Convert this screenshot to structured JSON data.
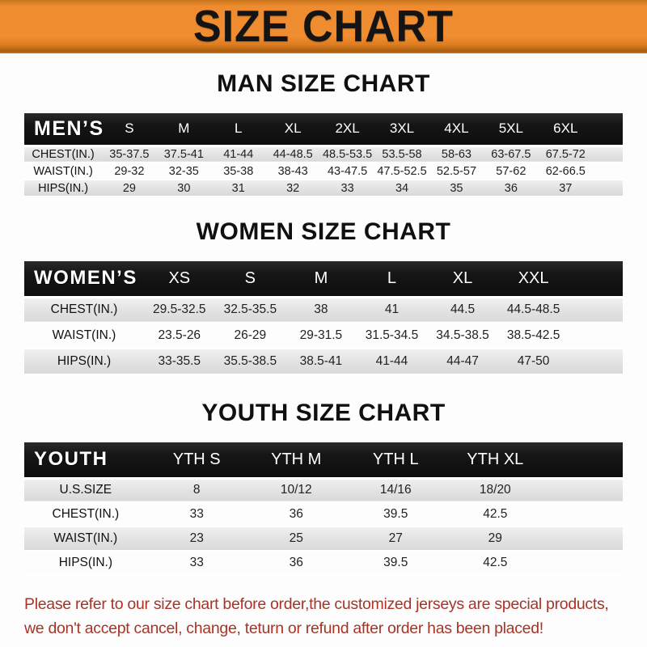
{
  "banner": {
    "title": "SIZE CHART"
  },
  "sections": [
    {
      "heading": "MAN SIZE CHART",
      "table": {
        "header": [
          "MEN’S",
          "S",
          "M",
          "L",
          "XL",
          "2XL",
          "3XL",
          "4XL",
          "5XL",
          "6XL"
        ],
        "rows": [
          [
            "CHEST(IN.)",
            "35-37.5",
            "37.5-41",
            "41-44",
            "44-48.5",
            "48.5-53.5",
            "53.5-58",
            "58-63",
            "63-67.5",
            "67.5-72"
          ],
          [
            "WAIST(IN.)",
            "29-32",
            "32-35",
            "35-38",
            "38-43",
            "43-47.5",
            "47.5-52.5",
            "52.5-57",
            "57-62",
            "62-66.5"
          ],
          [
            "HIPS(IN.)",
            "29",
            "30",
            "31",
            "32",
            "33",
            "34",
            "35",
            "36",
            "37"
          ]
        ]
      }
    },
    {
      "heading": "WOMEN SIZE CHART",
      "table": {
        "header": [
          "WOMEN’S",
          "XS",
          "S",
          "M",
          "L",
          "XL",
          "XXL"
        ],
        "rows": [
          [
            "CHEST(IN.)",
            "29.5-32.5",
            "32.5-35.5",
            "38",
            "41",
            "44.5",
            "44.5-48.5"
          ],
          [
            "WAIST(IN.)",
            "23.5-26",
            "26-29",
            "29-31.5",
            "31.5-34.5",
            "34.5-38.5",
            "38.5-42.5"
          ],
          [
            "HIPS(IN.)",
            "33-35.5",
            "35.5-38.5",
            "38.5-41",
            "41-44",
            "44-47",
            "47-50"
          ]
        ]
      }
    },
    {
      "heading": "YOUTH SIZE CHART",
      "table": {
        "header": [
          "YOUTH",
          "YTH S",
          "YTH M",
          "YTH L",
          "YTH XL"
        ],
        "rows": [
          [
            "U.S.SIZE",
            "8",
            "10/12",
            "14/16",
            "18/20"
          ],
          [
            "CHEST(IN.)",
            "33",
            "36",
            "39.5",
            "42.5"
          ],
          [
            "WAIST(IN.)",
            "23",
            "25",
            "27",
            "29"
          ],
          [
            "HIPS(IN.)",
            "33",
            "36",
            "39.5",
            "42.5"
          ]
        ]
      }
    }
  ],
  "footer": {
    "line1": "Please refer to our size chart before order,the customized jerseys are special products,",
    "line2": "we don't accept cancel, change, teturn or refund after order has been placed!"
  },
  "colors": {
    "banner-orange": "#EE8B2E",
    "bar-black": "#161616",
    "row-gray": "#E2E2E2",
    "footer-red": "#A83326"
  }
}
